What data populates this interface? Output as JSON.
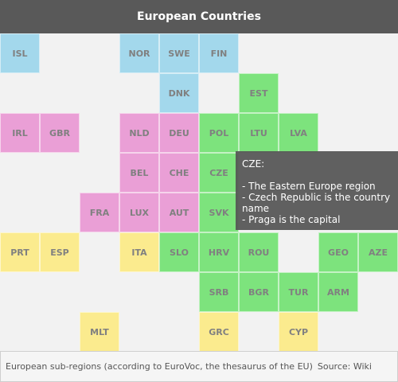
{
  "title": "European Countries",
  "footer": {
    "note": "European sub-regions (according to EuroVoc, the thesaurus of the EU)",
    "source": "Source: Wiki"
  },
  "colors": {
    "Northern": "#a3d8ec",
    "Western": "#ea9fd6",
    "Eastern": "#7de37d",
    "Southern": "#fbeb8e"
  },
  "chart_data": {
    "type": "tile-grid-map",
    "title": "European Countries",
    "tiles": [
      {
        "code": "ISL",
        "col": 0,
        "row": 0,
        "region": "Northern"
      },
      {
        "code": "NOR",
        "col": 3,
        "row": 0,
        "region": "Northern"
      },
      {
        "code": "SWE",
        "col": 4,
        "row": 0,
        "region": "Northern"
      },
      {
        "code": "FIN",
        "col": 5,
        "row": 0,
        "region": "Northern"
      },
      {
        "code": "DNK",
        "col": 4,
        "row": 1,
        "region": "Northern"
      },
      {
        "code": "EST",
        "col": 6,
        "row": 1,
        "region": "Eastern"
      },
      {
        "code": "IRL",
        "col": 0,
        "row": 2,
        "region": "Western"
      },
      {
        "code": "GBR",
        "col": 1,
        "row": 2,
        "region": "Western"
      },
      {
        "code": "NLD",
        "col": 3,
        "row": 2,
        "region": "Western"
      },
      {
        "code": "DEU",
        "col": 4,
        "row": 2,
        "region": "Western"
      },
      {
        "code": "POL",
        "col": 5,
        "row": 2,
        "region": "Eastern"
      },
      {
        "code": "LTU",
        "col": 6,
        "row": 2,
        "region": "Eastern"
      },
      {
        "code": "LVA",
        "col": 7,
        "row": 2,
        "region": "Eastern"
      },
      {
        "code": "BEL",
        "col": 3,
        "row": 3,
        "region": "Western"
      },
      {
        "code": "CHE",
        "col": 4,
        "row": 3,
        "region": "Western"
      },
      {
        "code": "CZE",
        "col": 5,
        "row": 3,
        "region": "Eastern"
      },
      {
        "code": "FRA",
        "col": 2,
        "row": 4,
        "region": "Western"
      },
      {
        "code": "LUX",
        "col": 3,
        "row": 4,
        "region": "Western"
      },
      {
        "code": "AUT",
        "col": 4,
        "row": 4,
        "region": "Western"
      },
      {
        "code": "SVK",
        "col": 5,
        "row": 4,
        "region": "Eastern"
      },
      {
        "code": "PRT",
        "col": 0,
        "row": 5,
        "region": "Southern"
      },
      {
        "code": "ESP",
        "col": 1,
        "row": 5,
        "region": "Southern"
      },
      {
        "code": "ITA",
        "col": 3,
        "row": 5,
        "region": "Southern"
      },
      {
        "code": "SLO",
        "col": 4,
        "row": 5,
        "region": "Eastern"
      },
      {
        "code": "HRV",
        "col": 5,
        "row": 5,
        "region": "Eastern"
      },
      {
        "code": "ROU",
        "col": 6,
        "row": 5,
        "region": "Eastern"
      },
      {
        "code": "GEO",
        "col": 8,
        "row": 5,
        "region": "Eastern"
      },
      {
        "code": "AZE",
        "col": 9,
        "row": 5,
        "region": "Eastern"
      },
      {
        "code": "SRB",
        "col": 5,
        "row": 6,
        "region": "Eastern"
      },
      {
        "code": "BGR",
        "col": 6,
        "row": 6,
        "region": "Eastern"
      },
      {
        "code": "TUR",
        "col": 7,
        "row": 6,
        "region": "Eastern"
      },
      {
        "code": "ARM",
        "col": 8,
        "row": 6,
        "region": "Eastern"
      },
      {
        "code": "MLT",
        "col": 2,
        "row": 7,
        "region": "Southern"
      },
      {
        "code": "GRC",
        "col": 5,
        "row": 7,
        "region": "Southern"
      },
      {
        "code": "CYP",
        "col": 7,
        "row": 7,
        "region": "Southern"
      }
    ],
    "tooltip": {
      "code": "CZE",
      "heading": "CZE:",
      "lines": [
        "- The Eastern Europe region",
        "- Czech Republic is the country name",
        "- Praga is the capital"
      ]
    }
  }
}
